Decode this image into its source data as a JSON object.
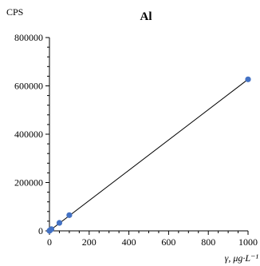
{
  "chart_data": {
    "type": "scatter",
    "title": "Al",
    "xlabel": "γ, μg·L⁻¹",
    "ylabel": "CPS",
    "xlim": [
      0,
      1000
    ],
    "ylim": [
      0,
      800000
    ],
    "x_ticks": [
      0,
      200,
      400,
      600,
      800,
      1000
    ],
    "x_tick_labels": [
      "0",
      "200",
      "400",
      "600",
      "800",
      "1000"
    ],
    "y_ticks": [
      0,
      200000,
      400000,
      600000,
      800000
    ],
    "y_tick_labels": [
      "0",
      "200000",
      "400000",
      "600000",
      "800000"
    ],
    "grid": false,
    "legend": "none",
    "series": [
      {
        "marker_color": "#4472C4",
        "points": [
          {
            "x": 0,
            "y": 0
          },
          {
            "x": 1,
            "y": 1000
          },
          {
            "x": 5,
            "y": 4000
          },
          {
            "x": 10,
            "y": 7000
          },
          {
            "x": 50,
            "y": 33000
          },
          {
            "x": 100,
            "y": 65000
          },
          {
            "x": 1000,
            "y": 627000
          }
        ]
      }
    ],
    "trendline": {
      "x": [
        0,
        1000
      ],
      "y": [
        0,
        627000
      ],
      "color": "#000000"
    }
  }
}
